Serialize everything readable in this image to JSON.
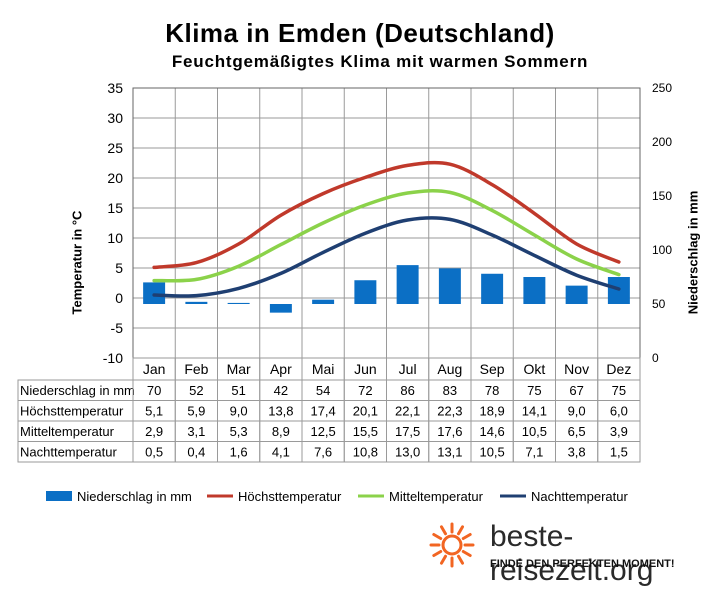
{
  "title": "Klima in Emden (Deutschland)",
  "subtitle": "Feuchtgemäßigtes Klima mit warmen Sommern",
  "brand": {
    "name": "beste-reisezeit.org",
    "slogan": "FINDE DEN PERFEKTEN MOMENT!",
    "logo_icon": "sun-icon"
  },
  "colors": {
    "Niederschlag in mm": "#0b6fc5",
    "Höchsttemperatur": "#c0392b",
    "Mitteltemperatur": "#8bd24a",
    "Nachttemperatur": "#1f3f72"
  },
  "chart_data": {
    "type": "bar",
    "title": "Klima in Emden (Deutschland)",
    "subtitle": "Feuchtgemäßigtes Klima mit warmen Sommern",
    "categories": [
      "Jan",
      "Feb",
      "Mar",
      "Apr",
      "Mai",
      "Jun",
      "Jul",
      "Aug",
      "Sep",
      "Okt",
      "Nov",
      "Dez"
    ],
    "ylabel": "Temperatur in °C",
    "ylabel_right": "Niederschlag in mm",
    "ylim": [
      -10,
      35
    ],
    "ylim_right": [
      0,
      250
    ],
    "yticks": [
      35,
      30,
      25,
      20,
      15,
      10,
      5,
      0,
      -5,
      -10
    ],
    "yticks_right": [
      250,
      200,
      150,
      100,
      50,
      0
    ],
    "grid": true,
    "legend": "bottom",
    "series": [
      {
        "name": "Niederschlag in mm",
        "type": "bar",
        "axis": "right",
        "values": [
          70,
          52,
          51,
          42,
          54,
          72,
          86,
          83,
          78,
          75,
          67,
          75
        ]
      },
      {
        "name": "Höchsttemperatur",
        "type": "line",
        "axis": "left",
        "values": [
          5.1,
          5.9,
          9.0,
          13.8,
          17.4,
          20.1,
          22.1,
          22.3,
          18.9,
          14.1,
          9.0,
          6.0
        ]
      },
      {
        "name": "Mitteltemperatur",
        "type": "line",
        "axis": "left",
        "values": [
          2.9,
          3.1,
          5.3,
          8.9,
          12.5,
          15.5,
          17.5,
          17.6,
          14.6,
          10.5,
          6.5,
          3.9
        ]
      },
      {
        "name": "Nachttemperatur",
        "type": "line",
        "axis": "left",
        "values": [
          0.5,
          0.4,
          1.6,
          4.1,
          7.6,
          10.8,
          13.0,
          13.1,
          10.5,
          7.1,
          3.8,
          1.5
        ]
      }
    ],
    "table": {
      "rows": [
        {
          "label": "Niederschlag in mm",
          "values": [
            "70",
            "52",
            "51",
            "42",
            "54",
            "72",
            "86",
            "83",
            "78",
            "75",
            "67",
            "75"
          ]
        },
        {
          "label": "Höchsttemperatur",
          "values": [
            "5,1",
            "5,9",
            "9,0",
            "13,8",
            "17,4",
            "20,1",
            "22,1",
            "22,3",
            "18,9",
            "14,1",
            "9,0",
            "6,0"
          ]
        },
        {
          "label": "Mitteltemperatur",
          "values": [
            "2,9",
            "3,1",
            "5,3",
            "8,9",
            "12,5",
            "15,5",
            "17,5",
            "17,6",
            "14,6",
            "10,5",
            "6,5",
            "3,9"
          ]
        },
        {
          "label": "Nachttemperatur",
          "values": [
            "0,5",
            "0,4",
            "1,6",
            "4,1",
            "7,6",
            "10,8",
            "13,0",
            "13,1",
            "10,5",
            "7,1",
            "3,8",
            "1,5"
          ]
        }
      ]
    }
  }
}
